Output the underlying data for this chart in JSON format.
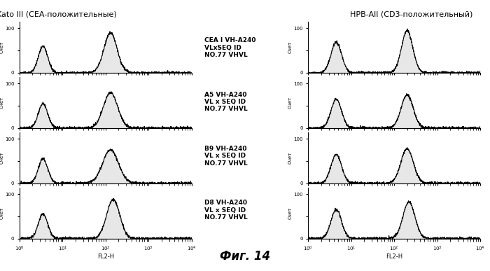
{
  "title_left": "Kato III (CEA-положительные)",
  "title_right": "HPB-All (CD3-положительный)",
  "ylabel": "Счет",
  "xlabel": "FL2-H",
  "fig_title": "Фиг. 14",
  "labels": [
    "CEA I VH-A240\nVLxSEQ ID\nNO.77 VHVL",
    "A5 VH-A240\nVL x SEQ ID\nNO.77 VHVL",
    "B9 VH-A240\nVL x SEQ ID\nNO.77 VHVL",
    "D8 VH-A240\nVL x SEQ ID\nNO.77 VHVL"
  ],
  "background_color": "#ffffff",
  "line_color": "#000000",
  "fill_color": "#d0d0d0"
}
